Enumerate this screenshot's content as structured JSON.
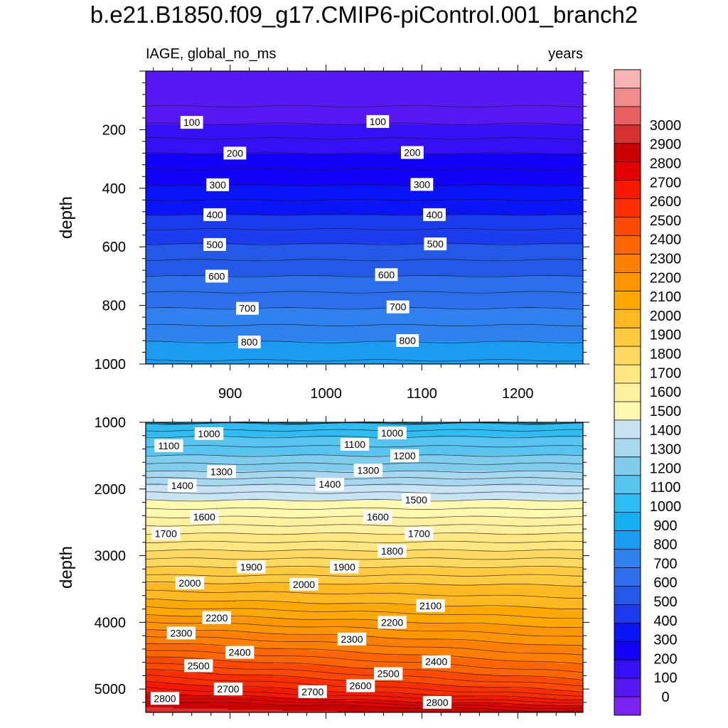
{
  "chart_data": {
    "type": "contour",
    "title": "b.e21.B1850.f09_g17.CMIP6-piControl.001_branch2",
    "left_string": "IAGE, global_no_ms",
    "right_string": "years",
    "xlabel": "",
    "ylabel": "depth",
    "xlim": [
      812,
      1268
    ],
    "x_ticks": [
      900,
      1000,
      1100,
      1200
    ],
    "panels": [
      {
        "name": "upper",
        "ylim": [
          0,
          1000
        ],
        "y_ticks": [
          200,
          400,
          600,
          800,
          1000
        ],
        "contour_levels": [
          100,
          200,
          300,
          400,
          500,
          600,
          700,
          800,
          900
        ],
        "line_labels": [
          {
            "value": 100,
            "x": 860,
            "y": 175
          },
          {
            "value": 100,
            "x": 1054,
            "y": 172
          },
          {
            "value": 200,
            "x": 905,
            "y": 280
          },
          {
            "value": 200,
            "x": 1090,
            "y": 278
          },
          {
            "value": 300,
            "x": 887,
            "y": 388
          },
          {
            "value": 300,
            "x": 1100,
            "y": 387
          },
          {
            "value": 400,
            "x": 884,
            "y": 490
          },
          {
            "value": 400,
            "x": 1113,
            "y": 490
          },
          {
            "value": 500,
            "x": 884,
            "y": 592
          },
          {
            "value": 500,
            "x": 1114,
            "y": 590
          },
          {
            "value": 600,
            "x": 886,
            "y": 700
          },
          {
            "value": 600,
            "x": 1063,
            "y": 695
          },
          {
            "value": 700,
            "x": 918,
            "y": 810
          },
          {
            "value": 700,
            "x": 1075,
            "y": 805
          },
          {
            "value": 800,
            "x": 920,
            "y": 925
          },
          {
            "value": 800,
            "x": 1085,
            "y": 920
          }
        ]
      },
      {
        "name": "lower",
        "ylim": [
          1000,
          5350
        ],
        "y_ticks": [
          1000,
          2000,
          3000,
          4000,
          5000
        ],
        "contour_levels": [
          1000,
          1100,
          1200,
          1300,
          1400,
          1500,
          1600,
          1700,
          1800,
          1900,
          2000,
          2100,
          2200,
          2300,
          2400,
          2500,
          2600,
          2700,
          2800,
          2900
        ],
        "line_labels": [
          {
            "value": 1000,
            "x": 878,
            "y": 1170
          },
          {
            "value": 1000,
            "x": 1069,
            "y": 1160
          },
          {
            "value": 1100,
            "x": 836,
            "y": 1350
          },
          {
            "value": 1100,
            "x": 1030,
            "y": 1330
          },
          {
            "value": 1200,
            "x": 1082,
            "y": 1500
          },
          {
            "value": 1300,
            "x": 891,
            "y": 1740
          },
          {
            "value": 1300,
            "x": 1044,
            "y": 1720
          },
          {
            "value": 1400,
            "x": 850,
            "y": 1950
          },
          {
            "value": 1400,
            "x": 1004,
            "y": 1930
          },
          {
            "value": 1500,
            "x": 1094,
            "y": 2160
          },
          {
            "value": 1600,
            "x": 873,
            "y": 2420
          },
          {
            "value": 1600,
            "x": 1054,
            "y": 2420
          },
          {
            "value": 1700,
            "x": 833,
            "y": 2670
          },
          {
            "value": 1700,
            "x": 1097,
            "y": 2670
          },
          {
            "value": 1800,
            "x": 1069,
            "y": 2930
          },
          {
            "value": 1900,
            "x": 922,
            "y": 3170
          },
          {
            "value": 1900,
            "x": 1019,
            "y": 3170
          },
          {
            "value": 2000,
            "x": 858,
            "y": 3410
          },
          {
            "value": 2000,
            "x": 977,
            "y": 3430
          },
          {
            "value": 2100,
            "x": 1109,
            "y": 3750
          },
          {
            "value": 2200,
            "x": 886,
            "y": 3930
          },
          {
            "value": 2200,
            "x": 1069,
            "y": 4000
          },
          {
            "value": 2300,
            "x": 849,
            "y": 4160
          },
          {
            "value": 2300,
            "x": 1027,
            "y": 4250
          },
          {
            "value": 2400,
            "x": 910,
            "y": 4450
          },
          {
            "value": 2400,
            "x": 1115,
            "y": 4590
          },
          {
            "value": 2500,
            "x": 867,
            "y": 4650
          },
          {
            "value": 2500,
            "x": 1065,
            "y": 4770
          },
          {
            "value": 2600,
            "x": 1036,
            "y": 4950
          },
          {
            "value": 2700,
            "x": 898,
            "y": 5000
          },
          {
            "value": 2700,
            "x": 986,
            "y": 5040
          },
          {
            "value": 2800,
            "x": 832,
            "y": 5140
          },
          {
            "value": 2800,
            "x": 1116,
            "y": 5200
          }
        ]
      }
    ],
    "colorbar": {
      "levels": [
        0,
        100,
        200,
        300,
        400,
        500,
        600,
        700,
        800,
        900,
        1000,
        1100,
        1200,
        1300,
        1400,
        1500,
        1600,
        1700,
        1800,
        1900,
        2000,
        2100,
        2200,
        2300,
        2400,
        2500,
        2600,
        2700,
        2800,
        2900,
        3000
      ],
      "colors": [
        "#7b24f2",
        "#5818f3",
        "#3510f5",
        "#1200f8",
        "#0a14f6",
        "#1a3cee",
        "#2459e8",
        "#2d6feb",
        "#2f82ee",
        "#1a9cf2",
        "#14b0f4",
        "#2ebcf2",
        "#56c4ee",
        "#80ccec",
        "#a8d8f0",
        "#c8e4f4",
        "#fff9b0",
        "#fff0a0",
        "#ffe680",
        "#ffd860",
        "#ffca40",
        "#ffb820",
        "#ffa800",
        "#ff9600",
        "#ff8000",
        "#ff6600",
        "#ff4a00",
        "#ff2e00",
        "#f81800",
        "#e40000",
        "#c80000",
        "#d83030",
        "#e86060",
        "#f08c8c",
        "#f8b4b4"
      ]
    }
  }
}
